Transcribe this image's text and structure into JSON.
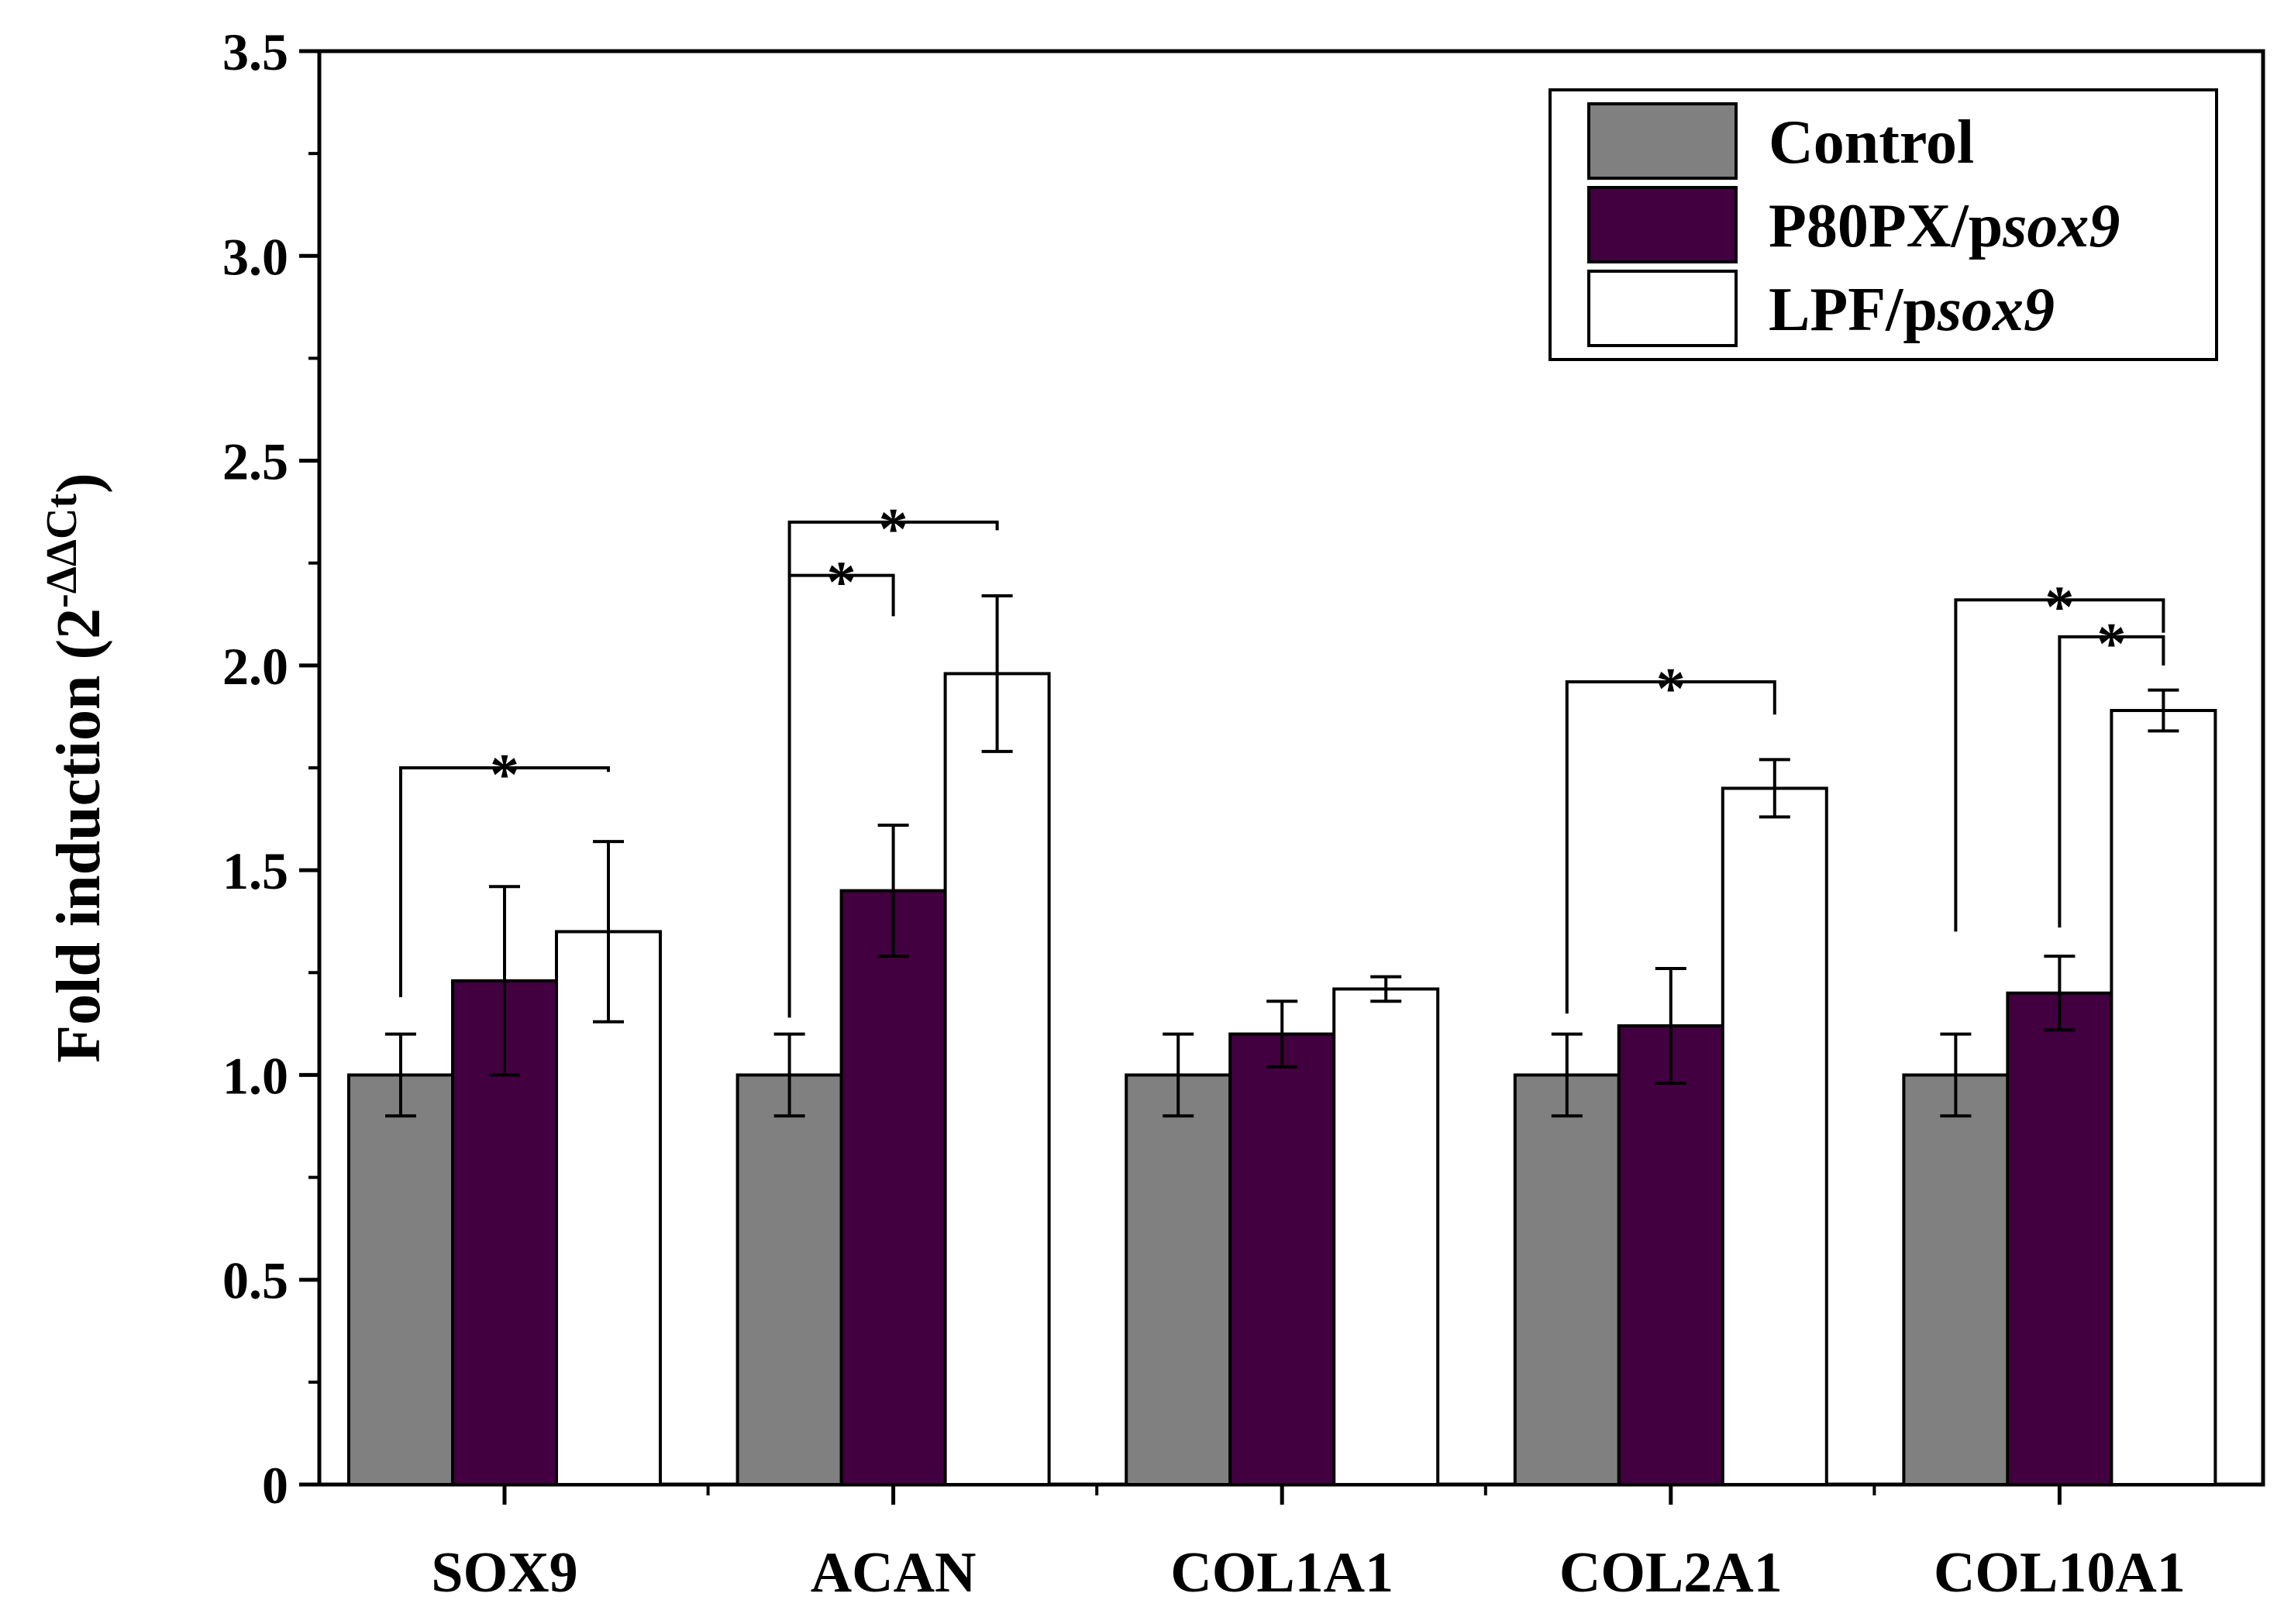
{
  "chart_data": {
    "type": "bar",
    "ylabel": "Fold induction (2-ΔΔCt)",
    "ylabel_parts": {
      "main": "Fold induction (2",
      "sup": "-ΔΔCt",
      "close": ")"
    },
    "ylim": [
      0,
      3.5
    ],
    "yticks": [
      0,
      0.5,
      1.0,
      1.5,
      2.0,
      2.5,
      3.0,
      3.5
    ],
    "ytick_labels": [
      "0",
      "0.5",
      "1.0",
      "1.5",
      "2.0",
      "2.5",
      "3.0",
      "3.5"
    ],
    "categories": [
      "SOX9",
      "ACAN",
      "COL1A1",
      "COL2A1",
      "COL10A1"
    ],
    "legend_position": "top-right",
    "grid": false,
    "series": [
      {
        "name": "Control",
        "legend_prefix": "Control",
        "legend_italic": "",
        "color": "#808080",
        "values": [
          1.0,
          1.0,
          1.0,
          1.0,
          1.0
        ],
        "errors": [
          0.1,
          0.1,
          0.1,
          0.1,
          0.1
        ]
      },
      {
        "name": "P80PX/psox9",
        "legend_prefix": "P80PX/p",
        "legend_italic": "sox9",
        "color": "#420040",
        "values": [
          1.23,
          1.45,
          1.1,
          1.12,
          1.2
        ],
        "errors": [
          0.23,
          0.16,
          0.08,
          0.14,
          0.09
        ]
      },
      {
        "name": "LPF/psox9",
        "legend_prefix": "LPF/p",
        "legend_italic": "sox9",
        "color": "#ffffff",
        "values": [
          1.35,
          1.98,
          1.21,
          1.7,
          1.89
        ],
        "errors": [
          0.22,
          0.19,
          0.03,
          0.07,
          0.05
        ]
      }
    ],
    "significance": [
      {
        "category": 0,
        "from": 0,
        "to": 2,
        "y_from": 1.19,
        "y_to": 1.74,
        "level": 1.75,
        "label": "*"
      },
      {
        "category": 1,
        "from": 0,
        "to": 1,
        "y_from": 1.14,
        "y_to": 2.12,
        "level": 2.22,
        "label": "*"
      },
      {
        "category": 1,
        "from": 0,
        "to": 2,
        "y_from": 2.22,
        "y_to": 2.33,
        "level": 2.35,
        "label": "*"
      },
      {
        "category": 3,
        "from": 0,
        "to": 2,
        "y_from": 1.15,
        "y_to": 1.88,
        "level": 1.96,
        "label": "*"
      },
      {
        "category": 4,
        "from": 0,
        "to": 2,
        "y_from": 1.35,
        "y_to": 2.08,
        "level": 2.16,
        "label": "*"
      },
      {
        "category": 4,
        "from": 1,
        "to": 2,
        "y_from": 1.36,
        "y_to": 2.0,
        "level": 2.07,
        "label": "*"
      }
    ]
  }
}
